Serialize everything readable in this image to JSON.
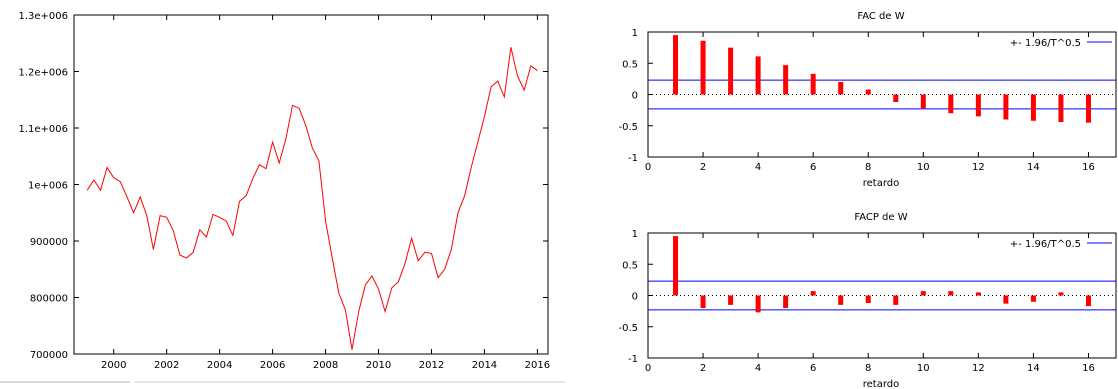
{
  "chart_data": [
    {
      "type": "line",
      "title": "",
      "xlabel": "",
      "ylabel": "",
      "xlim": [
        1998.5,
        2016.4
      ],
      "ylim": [
        700000,
        1300000
      ],
      "grid": false,
      "y_ticks": [
        700000,
        800000,
        900000,
        1000000,
        1100000,
        1200000,
        1300000
      ],
      "y_tick_labels": [
        "700000",
        "800000",
        "900000",
        "1e+006",
        "1.1e+006",
        "1.2e+006",
        "1.3e+006"
      ],
      "x_ticks": [
        2000,
        2002,
        2004,
        2006,
        2008,
        2010,
        2012,
        2014,
        2016
      ],
      "x_tick_labels": [
        "2000",
        "2002",
        "2004",
        "2006",
        "2008",
        "2010",
        "2012",
        "2014",
        "2016"
      ],
      "line_color": "#ff0000",
      "series": [
        {
          "x": [
            1999.0,
            1999.25,
            1999.5,
            1999.75,
            2000.0,
            2000.25,
            2000.5,
            2000.75,
            2001.0,
            2001.25,
            2001.5,
            2001.75,
            2002.0,
            2002.25,
            2002.5,
            2002.75,
            2003.0,
            2003.25,
            2003.5,
            2003.75,
            2004.0,
            2004.25,
            2004.5,
            2004.75,
            2005.0,
            2005.25,
            2005.5,
            2005.75,
            2006.0,
            2006.25,
            2006.5,
            2006.75,
            2007.0,
            2007.25,
            2007.5,
            2007.75,
            2008.0,
            2008.25,
            2008.5,
            2008.75,
            2009.0,
            2009.25,
            2009.5,
            2009.75,
            2010.0,
            2010.25,
            2010.5,
            2010.75,
            2011.0,
            2011.25,
            2011.5,
            2011.75,
            2012.0,
            2012.25,
            2012.5,
            2012.75,
            2013.0,
            2013.25,
            2013.5,
            2013.75,
            2014.0,
            2014.25,
            2014.5,
            2014.75,
            2015.0,
            2015.25,
            2015.5,
            2015.75,
            2016.0
          ],
          "y": [
            990000,
            1008000,
            990000,
            1030000,
            1012000,
            1005000,
            978000,
            950000,
            978000,
            945000,
            885000,
            945000,
            942000,
            918000,
            875000,
            870000,
            880000,
            920000,
            907000,
            947000,
            942000,
            935000,
            910000,
            970000,
            980000,
            1010000,
            1035000,
            1028000,
            1075000,
            1038000,
            1080000,
            1140000,
            1135000,
            1105000,
            1065000,
            1042000,
            935000,
            870000,
            808000,
            778000,
            708000,
            775000,
            822000,
            838000,
            815000,
            775000,
            817000,
            828000,
            860000,
            905000,
            865000,
            880000,
            878000,
            835000,
            850000,
            885000,
            950000,
            980000,
            1030000,
            1075000,
            1120000,
            1173000,
            1183000,
            1155000,
            1243000,
            1192000,
            1167000,
            1210000,
            1202000
          ]
        }
      ]
    },
    {
      "type": "bar",
      "title": "FAC de W",
      "xlabel": "retardo",
      "ylabel": "",
      "xlim": [
        0,
        17
      ],
      "ylim": [
        -1,
        1
      ],
      "x_ticks": [
        0,
        2,
        4,
        6,
        8,
        10,
        12,
        14,
        16
      ],
      "y_ticks": [
        -1,
        -0.5,
        0,
        0.5,
        1
      ],
      "legend": {
        "position": "top-right",
        "label": "+- 1.96/T^0.5"
      },
      "confidence_band": 0.23,
      "bar_color": "#ff0000",
      "band_color": "#0000ff",
      "categories": [
        1,
        2,
        3,
        4,
        5,
        6,
        7,
        8,
        9,
        10,
        11,
        12,
        13,
        14,
        15,
        16
      ],
      "values": [
        0.95,
        0.86,
        0.75,
        0.61,
        0.47,
        0.33,
        0.2,
        0.08,
        -0.12,
        -0.22,
        -0.3,
        -0.35,
        -0.4,
        -0.42,
        -0.44,
        -0.45
      ]
    },
    {
      "type": "bar",
      "title": "FACP de W",
      "xlabel": "retardo",
      "ylabel": "",
      "xlim": [
        0,
        17
      ],
      "ylim": [
        -1,
        1
      ],
      "x_ticks": [
        0,
        2,
        4,
        6,
        8,
        10,
        12,
        14,
        16
      ],
      "y_ticks": [
        -1,
        -0.5,
        0,
        0.5,
        1
      ],
      "legend": {
        "position": "top-right",
        "label": "+- 1.96/T^0.5"
      },
      "confidence_band": 0.23,
      "bar_color": "#ff0000",
      "band_color": "#0000ff",
      "categories": [
        1,
        2,
        3,
        4,
        5,
        6,
        7,
        8,
        9,
        10,
        11,
        12,
        13,
        14,
        15,
        16
      ],
      "values": [
        0.95,
        -0.2,
        -0.15,
        -0.27,
        -0.2,
        0.07,
        -0.15,
        -0.12,
        -0.15,
        0.07,
        0.07,
        0.05,
        -0.13,
        -0.1,
        0.05,
        -0.17
      ]
    }
  ]
}
